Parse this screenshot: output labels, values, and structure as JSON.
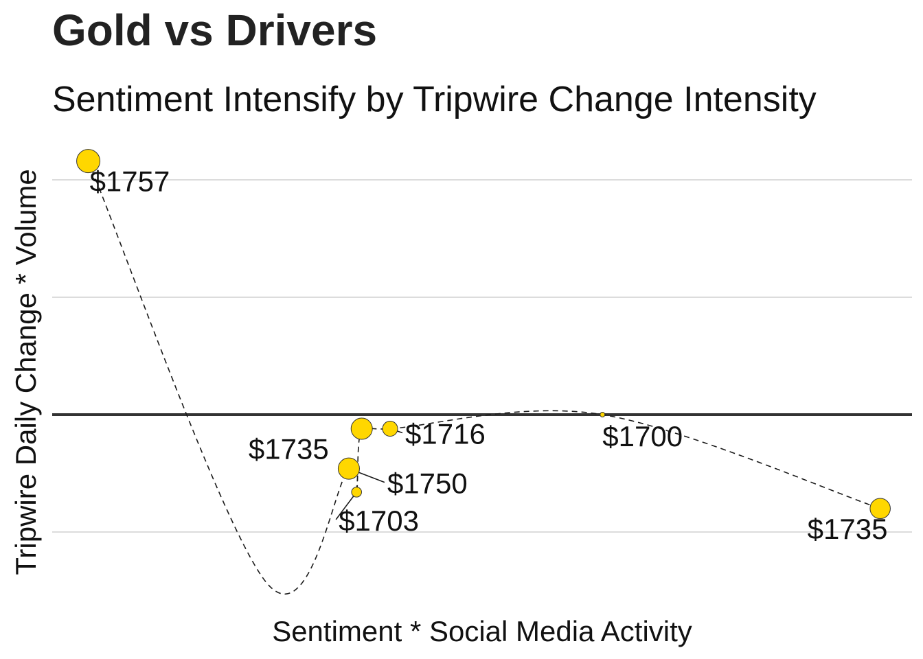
{
  "chart_data": {
    "type": "scatter",
    "title": "Gold vs Drivers",
    "subtitle": "Sentiment Intensify by Tripwire Change Intensity",
    "xlabel": "Sentiment * Social Media Activity",
    "ylabel": "Tripwire Daily Change * Volume",
    "x_tick_labels": [],
    "y_tick_labels": [],
    "xlim": [
      0.0,
      1.0
    ],
    "ylim": [
      -0.45,
      1.15
    ],
    "y_gridlines": [
      -0.5,
      0.0,
      0.5,
      1.0
    ],
    "zero_line": 0.0,
    "grid": "horizontal",
    "legend": "none",
    "marker_color": "#FFD700",
    "marker_edge_color": "#333333",
    "line_style": "dashed",
    "points": [
      {
        "x": 0.042,
        "y": 1.08,
        "size": 1.0,
        "label": "$1757"
      },
      {
        "x": 0.345,
        "y": -0.23,
        "size": 0.9,
        "label": "$1750"
      },
      {
        "x": 0.354,
        "y": -0.33,
        "size": 0.35,
        "label": "$1703"
      },
      {
        "x": 0.36,
        "y": -0.06,
        "size": 0.9,
        "label": "$1735"
      },
      {
        "x": 0.393,
        "y": -0.06,
        "size": 0.6,
        "label": "$1716"
      },
      {
        "x": 0.64,
        "y": 0.0,
        "size": 0.1,
        "label": "$1700"
      },
      {
        "x": 0.963,
        "y": -0.4,
        "size": 0.85,
        "label": "$1735"
      }
    ]
  }
}
